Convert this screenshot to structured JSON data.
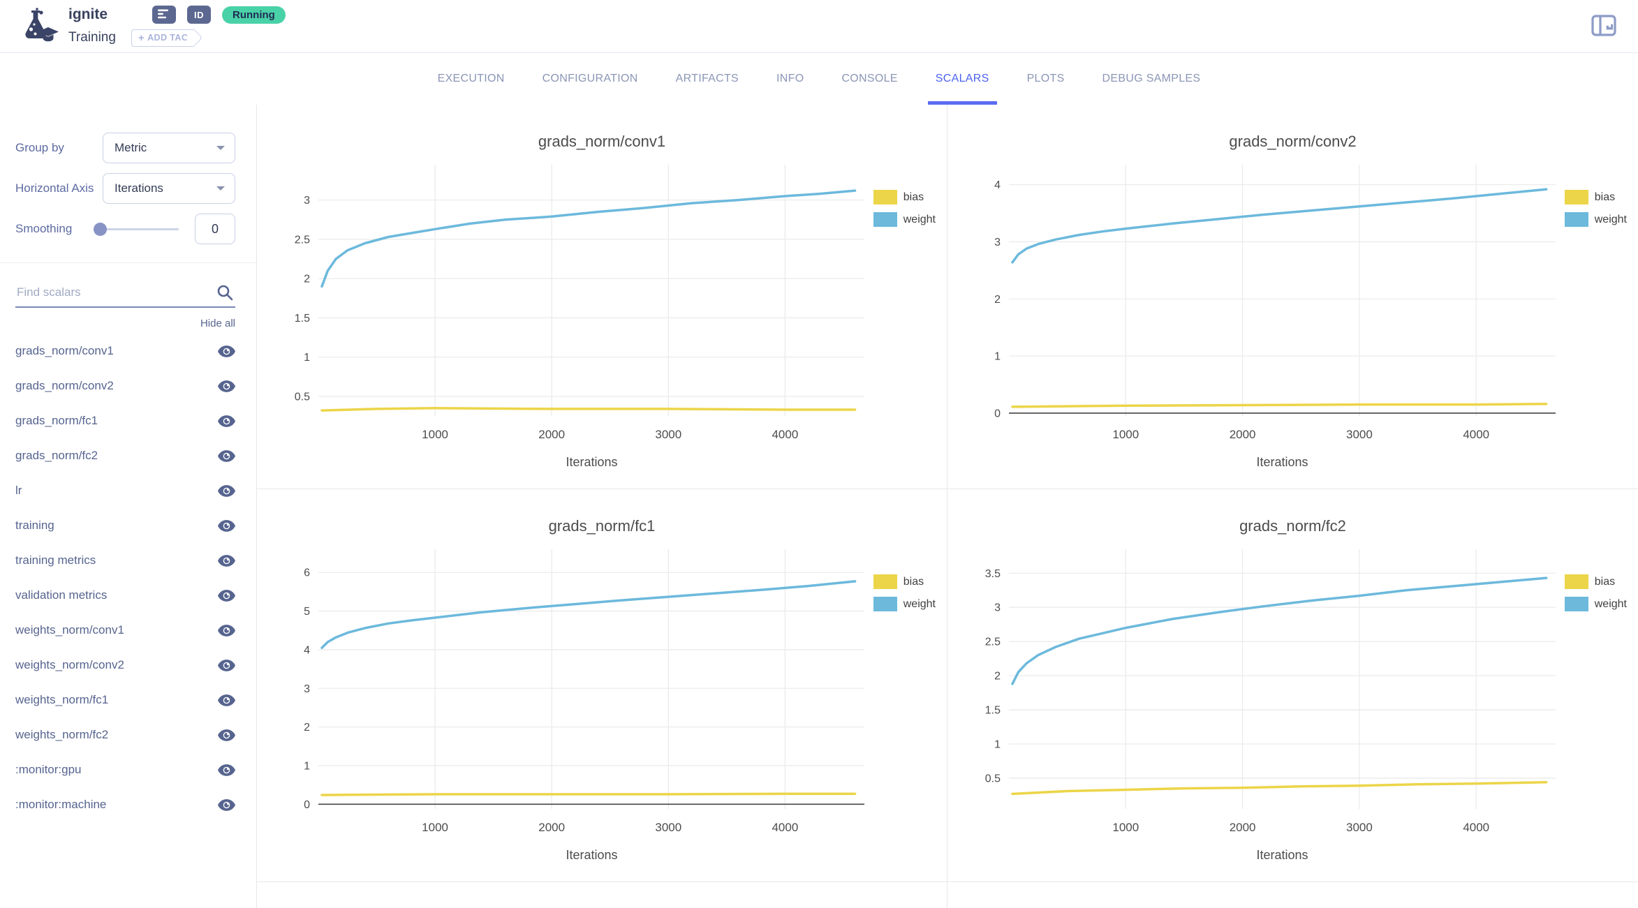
{
  "header": {
    "title": "ignite",
    "subtitle": "Training",
    "status_badge": "Running",
    "id_badge_label": "ID",
    "add_tag_plus": "+",
    "add_tag_label": "ADD TAG"
  },
  "tabs": {
    "items": [
      "EXECUTION",
      "CONFIGURATION",
      "ARTIFACTS",
      "INFO",
      "CONSOLE",
      "SCALARS",
      "PLOTS",
      "DEBUG SAMPLES"
    ],
    "active": "SCALARS"
  },
  "sidebar": {
    "group_by": {
      "label": "Group by",
      "value": "Metric"
    },
    "horizontal_axis": {
      "label": "Horizontal Axis",
      "value": "Iterations"
    },
    "smoothing": {
      "label": "Smoothing",
      "value": "0"
    },
    "search": {
      "placeholder": "Find scalars"
    },
    "hide_all_label": "Hide all",
    "scalars": [
      "grads_norm/conv1",
      "grads_norm/conv2",
      "grads_norm/fc1",
      "grads_norm/fc2",
      "lr",
      "training",
      "training metrics",
      "validation metrics",
      "weights_norm/conv1",
      "weights_norm/conv2",
      "weights_norm/fc1",
      "weights_norm/fc2",
      ":monitor:gpu",
      ":monitor:machine"
    ]
  },
  "icons": {
    "logo": "flask-with-graduation-cap",
    "description_chip": "text-lines",
    "id_chip": "ID",
    "add_tag": "plus",
    "panel_toggle": "split-panel-with-bar-chart",
    "search": "magnifier",
    "visibility": "eye",
    "dropdown": "chevron-down"
  },
  "colors": {
    "accent_blue": "#4c62f0",
    "tab_inactive": "#8b96b6",
    "status_green": "#49d2a7",
    "sidebar_text": "#56648f",
    "series_bias": "#ecd549",
    "series_weight": "#6cb9dc",
    "gridline": "#ebebeb",
    "zeroline": "#444444"
  },
  "chart_data": [
    {
      "type": "line",
      "title": "grads_norm/conv1",
      "xlabel": "Iterations",
      "xticks": [
        1000,
        2000,
        3000,
        4000
      ],
      "xlim": [
        0,
        4680
      ],
      "yticks": [
        0.5,
        1,
        1.5,
        2,
        2.5,
        3
      ],
      "ylim": [
        0.25,
        3.45
      ],
      "zeroline": false,
      "legend_position": "top-right",
      "grid": true,
      "series": [
        {
          "name": "bias",
          "color": "#ecd549",
          "x": [
            30,
            500,
            1000,
            2000,
            3000,
            4000,
            4600
          ],
          "y": [
            0.32,
            0.34,
            0.35,
            0.34,
            0.34,
            0.33,
            0.33
          ]
        },
        {
          "name": "weight",
          "color": "#6cb9dc",
          "x": [
            30,
            80,
            150,
            250,
            400,
            600,
            800,
            1000,
            1300,
            1600,
            2000,
            2400,
            2800,
            3200,
            3600,
            4000,
            4300,
            4600
          ],
          "y": [
            1.9,
            2.1,
            2.25,
            2.36,
            2.45,
            2.53,
            2.58,
            2.63,
            2.7,
            2.75,
            2.79,
            2.85,
            2.9,
            2.96,
            3.0,
            3.05,
            3.08,
            3.12
          ]
        }
      ]
    },
    {
      "type": "line",
      "title": "grads_norm/conv2",
      "xlabel": "Iterations",
      "xticks": [
        1000,
        2000,
        3000,
        4000
      ],
      "xlim": [
        0,
        4680
      ],
      "yticks": [
        0,
        1,
        2,
        3,
        4
      ],
      "ylim": [
        -0.05,
        4.35
      ],
      "zeroline": true,
      "legend_position": "top-right",
      "grid": true,
      "series": [
        {
          "name": "bias",
          "color": "#ecd549",
          "x": [
            30,
            1000,
            2000,
            3000,
            4000,
            4600
          ],
          "y": [
            0.11,
            0.13,
            0.14,
            0.15,
            0.15,
            0.16
          ]
        },
        {
          "name": "weight",
          "color": "#6cb9dc",
          "x": [
            30,
            80,
            150,
            250,
            400,
            600,
            800,
            1000,
            1400,
            1800,
            2200,
            2600,
            3000,
            3400,
            3800,
            4200,
            4600
          ],
          "y": [
            2.64,
            2.78,
            2.88,
            2.96,
            3.04,
            3.12,
            3.18,
            3.23,
            3.32,
            3.4,
            3.48,
            3.55,
            3.62,
            3.69,
            3.76,
            3.84,
            3.92
          ]
        }
      ]
    },
    {
      "type": "line",
      "title": "grads_norm/fc1",
      "xlabel": "Iterations",
      "xticks": [
        1000,
        2000,
        3000,
        4000
      ],
      "xlim": [
        0,
        4680
      ],
      "yticks": [
        0,
        1,
        2,
        3,
        4,
        5,
        6
      ],
      "ylim": [
        -0.12,
        6.6
      ],
      "zeroline": true,
      "legend_position": "top-right",
      "grid": true,
      "series": [
        {
          "name": "bias",
          "color": "#ecd549",
          "x": [
            30,
            1000,
            2000,
            3000,
            4000,
            4600
          ],
          "y": [
            0.24,
            0.26,
            0.26,
            0.26,
            0.27,
            0.27
          ]
        },
        {
          "name": "weight",
          "color": "#6cb9dc",
          "x": [
            30,
            80,
            150,
            250,
            400,
            600,
            800,
            1000,
            1400,
            1800,
            2200,
            2600,
            3000,
            3400,
            3800,
            4200,
            4600
          ],
          "y": [
            4.05,
            4.2,
            4.32,
            4.44,
            4.56,
            4.68,
            4.76,
            4.83,
            4.97,
            5.08,
            5.18,
            5.28,
            5.37,
            5.46,
            5.55,
            5.65,
            5.77
          ]
        }
      ]
    },
    {
      "type": "line",
      "title": "grads_norm/fc2",
      "xlabel": "Iterations",
      "xticks": [
        1000,
        2000,
        3000,
        4000
      ],
      "xlim": [
        0,
        4680
      ],
      "yticks": [
        0.5,
        1,
        1.5,
        2,
        2.5,
        3,
        3.5
      ],
      "ylim": [
        0.05,
        3.85
      ],
      "zeroline": false,
      "legend_position": "top-right",
      "grid": true,
      "series": [
        {
          "name": "bias",
          "color": "#ecd549",
          "x": [
            30,
            500,
            1000,
            1500,
            2000,
            2500,
            3000,
            3500,
            4000,
            4600
          ],
          "y": [
            0.27,
            0.31,
            0.33,
            0.35,
            0.36,
            0.38,
            0.39,
            0.41,
            0.42,
            0.44
          ]
        },
        {
          "name": "weight",
          "color": "#6cb9dc",
          "x": [
            30,
            80,
            150,
            250,
            400,
            600,
            800,
            1000,
            1400,
            1800,
            2200,
            2600,
            3000,
            3400,
            3800,
            4200,
            4600
          ],
          "y": [
            1.88,
            2.05,
            2.18,
            2.3,
            2.42,
            2.54,
            2.62,
            2.7,
            2.83,
            2.93,
            3.02,
            3.1,
            3.17,
            3.25,
            3.31,
            3.37,
            3.43
          ]
        }
      ]
    }
  ]
}
